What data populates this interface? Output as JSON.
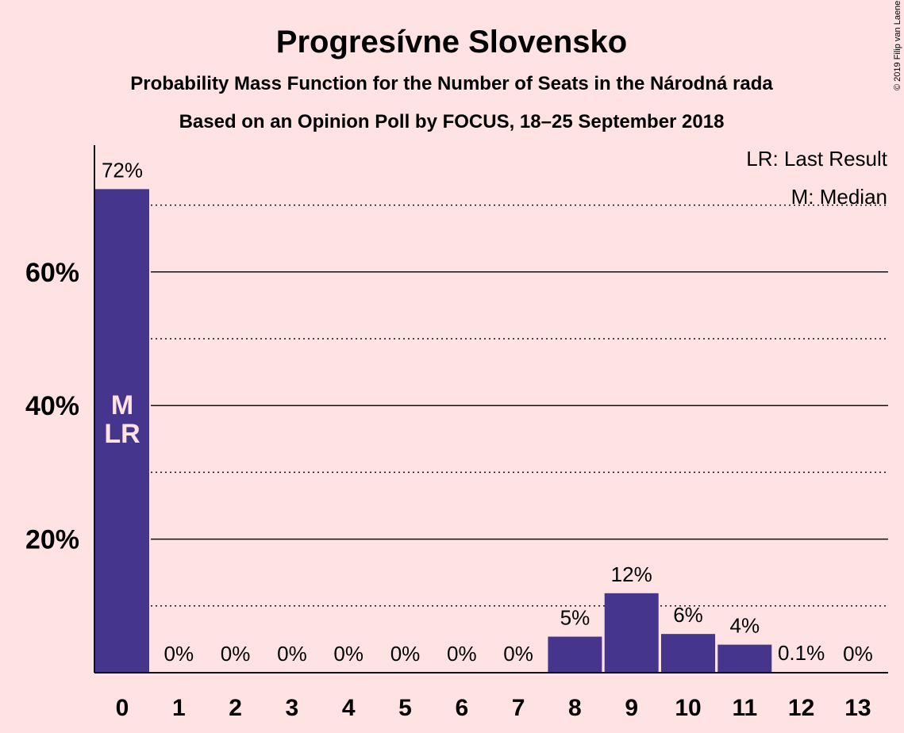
{
  "chart_data": {
    "type": "bar",
    "title": "Progresívne Slovensko",
    "subtitle": "Probability Mass Function for the Number of Seats in the Národná rada",
    "subtitle2": "Based on an Opinion Poll by FOCUS, 18–25 September 2018",
    "categories": [
      "0",
      "1",
      "2",
      "3",
      "4",
      "5",
      "6",
      "7",
      "8",
      "9",
      "10",
      "11",
      "12",
      "13"
    ],
    "values": [
      72.4,
      0,
      0,
      0,
      0,
      0,
      0,
      0,
      5.4,
      11.9,
      5.8,
      4.2,
      0.1,
      0
    ],
    "value_labels": [
      "72%",
      "0%",
      "0%",
      "0%",
      "0%",
      "0%",
      "0%",
      "0%",
      "5%",
      "12%",
      "6%",
      "4%",
      "0.1%",
      "0%"
    ],
    "ylim": [
      0,
      79
    ],
    "yticks": [
      20,
      40,
      60
    ],
    "ytick_labels": [
      "20%",
      "40%",
      "60%"
    ],
    "minor_gridlines": [
      10,
      30,
      50,
      70
    ],
    "bar_color": "#46358C",
    "background": "#FFE3E3",
    "median_index": 0,
    "last_result_index": 0,
    "median_marker": "M",
    "last_result_marker": "LR",
    "legend": [
      "LR: Last Result",
      "M: Median"
    ],
    "legend_position": "top-right",
    "copyright": "© 2019 Filip van Laenen"
  }
}
